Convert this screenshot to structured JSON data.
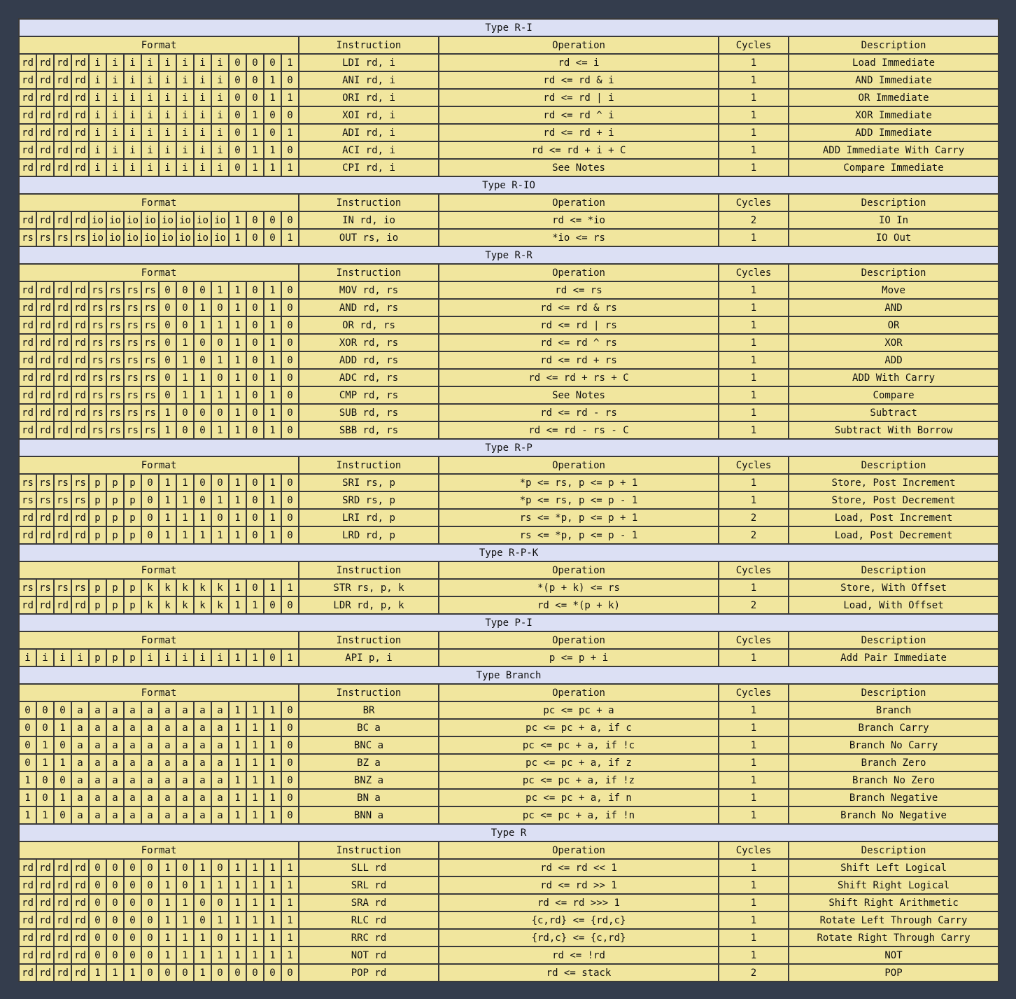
{
  "headers": {
    "format": "Format",
    "instruction": "Instruction",
    "operation": "Operation",
    "cycles": "Cycles",
    "description": "Description"
  },
  "sections": [
    {
      "title": "Type R-I",
      "rows": [
        {
          "bits": [
            "rd",
            "rd",
            "rd",
            "rd",
            "i",
            "i",
            "i",
            "i",
            "i",
            "i",
            "i",
            "i",
            "0",
            "0",
            "0",
            "1"
          ],
          "instruction": "LDI rd, i",
          "operation": "rd <= i",
          "cycles": "1",
          "description": "Load Immediate"
        },
        {
          "bits": [
            "rd",
            "rd",
            "rd",
            "rd",
            "i",
            "i",
            "i",
            "i",
            "i",
            "i",
            "i",
            "i",
            "0",
            "0",
            "1",
            "0"
          ],
          "instruction": "ANI rd, i",
          "operation": "rd <= rd & i",
          "cycles": "1",
          "description": "AND Immediate"
        },
        {
          "bits": [
            "rd",
            "rd",
            "rd",
            "rd",
            "i",
            "i",
            "i",
            "i",
            "i",
            "i",
            "i",
            "i",
            "0",
            "0",
            "1",
            "1"
          ],
          "instruction": "ORI rd, i",
          "operation": "rd <= rd | i",
          "cycles": "1",
          "description": "OR Immediate"
        },
        {
          "bits": [
            "rd",
            "rd",
            "rd",
            "rd",
            "i",
            "i",
            "i",
            "i",
            "i",
            "i",
            "i",
            "i",
            "0",
            "1",
            "0",
            "0"
          ],
          "instruction": "XOI rd, i",
          "operation": "rd <= rd ^ i",
          "cycles": "1",
          "description": "XOR Immediate"
        },
        {
          "bits": [
            "rd",
            "rd",
            "rd",
            "rd",
            "i",
            "i",
            "i",
            "i",
            "i",
            "i",
            "i",
            "i",
            "0",
            "1",
            "0",
            "1"
          ],
          "instruction": "ADI rd, i",
          "operation": "rd <= rd + i",
          "cycles": "1",
          "description": "ADD Immediate"
        },
        {
          "bits": [
            "rd",
            "rd",
            "rd",
            "rd",
            "i",
            "i",
            "i",
            "i",
            "i",
            "i",
            "i",
            "i",
            "0",
            "1",
            "1",
            "0"
          ],
          "instruction": "ACI rd, i",
          "operation": "rd <= rd + i + C",
          "cycles": "1",
          "description": "ADD Immediate With Carry"
        },
        {
          "bits": [
            "rd",
            "rd",
            "rd",
            "rd",
            "i",
            "i",
            "i",
            "i",
            "i",
            "i",
            "i",
            "i",
            "0",
            "1",
            "1",
            "1"
          ],
          "instruction": "CPI rd, i",
          "operation": "See Notes",
          "cycles": "1",
          "description": "Compare Immediate"
        }
      ]
    },
    {
      "title": "Type R-IO",
      "rows": [
        {
          "bits": [
            "rd",
            "rd",
            "rd",
            "rd",
            "io",
            "io",
            "io",
            "io",
            "io",
            "io",
            "io",
            "io",
            "1",
            "0",
            "0",
            "0"
          ],
          "instruction": "IN rd, io",
          "operation": "rd <= *io",
          "cycles": "2",
          "description": "IO In"
        },
        {
          "bits": [
            "rs",
            "rs",
            "rs",
            "rs",
            "io",
            "io",
            "io",
            "io",
            "io",
            "io",
            "io",
            "io",
            "1",
            "0",
            "0",
            "1"
          ],
          "instruction": "OUT rs, io",
          "operation": "*io <= rs",
          "cycles": "1",
          "description": "IO Out"
        }
      ]
    },
    {
      "title": "Type R-R",
      "rows": [
        {
          "bits": [
            "rd",
            "rd",
            "rd",
            "rd",
            "rs",
            "rs",
            "rs",
            "rs",
            "0",
            "0",
            "0",
            "1",
            "1",
            "0",
            "1",
            "0"
          ],
          "instruction": "MOV rd, rs",
          "operation": "rd <= rs",
          "cycles": "1",
          "description": "Move"
        },
        {
          "bits": [
            "rd",
            "rd",
            "rd",
            "rd",
            "rs",
            "rs",
            "rs",
            "rs",
            "0",
            "0",
            "1",
            "0",
            "1",
            "0",
            "1",
            "0"
          ],
          "instruction": "AND rd, rs",
          "operation": "rd <= rd & rs",
          "cycles": "1",
          "description": "AND"
        },
        {
          "bits": [
            "rd",
            "rd",
            "rd",
            "rd",
            "rs",
            "rs",
            "rs",
            "rs",
            "0",
            "0",
            "1",
            "1",
            "1",
            "0",
            "1",
            "0"
          ],
          "instruction": "OR rd, rs",
          "operation": "rd <= rd | rs",
          "cycles": "1",
          "description": "OR"
        },
        {
          "bits": [
            "rd",
            "rd",
            "rd",
            "rd",
            "rs",
            "rs",
            "rs",
            "rs",
            "0",
            "1",
            "0",
            "0",
            "1",
            "0",
            "1",
            "0"
          ],
          "instruction": "XOR rd, rs",
          "operation": "rd <= rd ^ rs",
          "cycles": "1",
          "description": "XOR"
        },
        {
          "bits": [
            "rd",
            "rd",
            "rd",
            "rd",
            "rs",
            "rs",
            "rs",
            "rs",
            "0",
            "1",
            "0",
            "1",
            "1",
            "0",
            "1",
            "0"
          ],
          "instruction": "ADD rd, rs",
          "operation": "rd <= rd + rs",
          "cycles": "1",
          "description": "ADD"
        },
        {
          "bits": [
            "rd",
            "rd",
            "rd",
            "rd",
            "rs",
            "rs",
            "rs",
            "rs",
            "0",
            "1",
            "1",
            "0",
            "1",
            "0",
            "1",
            "0"
          ],
          "instruction": "ADC rd, rs",
          "operation": "rd <= rd + rs + C",
          "cycles": "1",
          "description": "ADD With Carry"
        },
        {
          "bits": [
            "rd",
            "rd",
            "rd",
            "rd",
            "rs",
            "rs",
            "rs",
            "rs",
            "0",
            "1",
            "1",
            "1",
            "1",
            "0",
            "1",
            "0"
          ],
          "instruction": "CMP rd, rs",
          "operation": "See Notes",
          "cycles": "1",
          "description": "Compare"
        },
        {
          "bits": [
            "rd",
            "rd",
            "rd",
            "rd",
            "rs",
            "rs",
            "rs",
            "rs",
            "1",
            "0",
            "0",
            "0",
            "1",
            "0",
            "1",
            "0"
          ],
          "instruction": "SUB rd, rs",
          "operation": "rd <= rd - rs",
          "cycles": "1",
          "description": "Subtract"
        },
        {
          "bits": [
            "rd",
            "rd",
            "rd",
            "rd",
            "rs",
            "rs",
            "rs",
            "rs",
            "1",
            "0",
            "0",
            "1",
            "1",
            "0",
            "1",
            "0"
          ],
          "instruction": "SBB rd, rs",
          "operation": "rd <= rd - rs - C",
          "cycles": "1",
          "description": "Subtract With Borrow"
        }
      ]
    },
    {
      "title": "Type R-P",
      "rows": [
        {
          "bits": [
            "rs",
            "rs",
            "rs",
            "rs",
            "p",
            "p",
            "p",
            "0",
            "1",
            "1",
            "0",
            "0",
            "1",
            "0",
            "1",
            "0"
          ],
          "instruction": "SRI rs, p",
          "operation": "*p <= rs, p <= p + 1",
          "cycles": "1",
          "description": "Store, Post Increment"
        },
        {
          "bits": [
            "rs",
            "rs",
            "rs",
            "rs",
            "p",
            "p",
            "p",
            "0",
            "1",
            "1",
            "0",
            "1",
            "1",
            "0",
            "1",
            "0"
          ],
          "instruction": "SRD rs, p",
          "operation": "*p <= rs, p <= p - 1",
          "cycles": "1",
          "description": "Store, Post Decrement"
        },
        {
          "bits": [
            "rd",
            "rd",
            "rd",
            "rd",
            "p",
            "p",
            "p",
            "0",
            "1",
            "1",
            "1",
            "0",
            "1",
            "0",
            "1",
            "0"
          ],
          "instruction": "LRI rd, p",
          "operation": "rs <= *p, p <= p + 1",
          "cycles": "2",
          "description": "Load, Post Increment"
        },
        {
          "bits": [
            "rd",
            "rd",
            "rd",
            "rd",
            "p",
            "p",
            "p",
            "0",
            "1",
            "1",
            "1",
            "1",
            "1",
            "0",
            "1",
            "0"
          ],
          "instruction": "LRD rd, p",
          "operation": "rs <= *p, p <= p - 1",
          "cycles": "2",
          "description": "Load, Post Decrement"
        }
      ]
    },
    {
      "title": "Type R-P-K",
      "rows": [
        {
          "bits": [
            "rs",
            "rs",
            "rs",
            "rs",
            "p",
            "p",
            "p",
            "k",
            "k",
            "k",
            "k",
            "k",
            "1",
            "0",
            "1",
            "1"
          ],
          "instruction": "STR rs, p, k",
          "operation": "*(p + k) <= rs",
          "cycles": "1",
          "description": "Store, With Offset"
        },
        {
          "bits": [
            "rd",
            "rd",
            "rd",
            "rd",
            "p",
            "p",
            "p",
            "k",
            "k",
            "k",
            "k",
            "k",
            "1",
            "1",
            "0",
            "0"
          ],
          "instruction": "LDR rd, p, k",
          "operation": "rd <= *(p + k)",
          "cycles": "2",
          "description": "Load, With Offset"
        }
      ]
    },
    {
      "title": "Type P-I",
      "rows": [
        {
          "bits": [
            "i",
            "i",
            "i",
            "i",
            "p",
            "p",
            "p",
            "i",
            "i",
            "i",
            "i",
            "i",
            "1",
            "1",
            "0",
            "1"
          ],
          "instruction": "API p, i",
          "operation": "p <= p + i",
          "cycles": "1",
          "description": "Add Pair Immediate"
        }
      ]
    },
    {
      "title": "Type Branch",
      "rows": [
        {
          "bits": [
            "0",
            "0",
            "0",
            "a",
            "a",
            "a",
            "a",
            "a",
            "a",
            "a",
            "a",
            "a",
            "1",
            "1",
            "1",
            "0"
          ],
          "instruction": "BR",
          "operation": "pc <= pc + a",
          "cycles": "1",
          "description": "Branch"
        },
        {
          "bits": [
            "0",
            "0",
            "1",
            "a",
            "a",
            "a",
            "a",
            "a",
            "a",
            "a",
            "a",
            "a",
            "1",
            "1",
            "1",
            "0"
          ],
          "instruction": "BC a",
          "operation": "pc <= pc + a, if c",
          "cycles": "1",
          "description": "Branch Carry"
        },
        {
          "bits": [
            "0",
            "1",
            "0",
            "a",
            "a",
            "a",
            "a",
            "a",
            "a",
            "a",
            "a",
            "a",
            "1",
            "1",
            "1",
            "0"
          ],
          "instruction": "BNC a",
          "operation": "pc <= pc + a, if !c",
          "cycles": "1",
          "description": "Branch No Carry"
        },
        {
          "bits": [
            "0",
            "1",
            "1",
            "a",
            "a",
            "a",
            "a",
            "a",
            "a",
            "a",
            "a",
            "a",
            "1",
            "1",
            "1",
            "0"
          ],
          "instruction": "BZ a",
          "operation": "pc <= pc + a, if z",
          "cycles": "1",
          "description": "Branch Zero"
        },
        {
          "bits": [
            "1",
            "0",
            "0",
            "a",
            "a",
            "a",
            "a",
            "a",
            "a",
            "a",
            "a",
            "a",
            "1",
            "1",
            "1",
            "0"
          ],
          "instruction": "BNZ a",
          "operation": "pc <= pc + a, if !z",
          "cycles": "1",
          "description": "Branch No Zero"
        },
        {
          "bits": [
            "1",
            "0",
            "1",
            "a",
            "a",
            "a",
            "a",
            "a",
            "a",
            "a",
            "a",
            "a",
            "1",
            "1",
            "1",
            "0"
          ],
          "instruction": "BN a",
          "operation": "pc <= pc + a, if n",
          "cycles": "1",
          "description": "Branch Negative"
        },
        {
          "bits": [
            "1",
            "1",
            "0",
            "a",
            "a",
            "a",
            "a",
            "a",
            "a",
            "a",
            "a",
            "a",
            "1",
            "1",
            "1",
            "0"
          ],
          "instruction": "BNN a",
          "operation": "pc <= pc + a, if !n",
          "cycles": "1",
          "description": "Branch No Negative"
        }
      ]
    },
    {
      "title": "Type R",
      "rows": [
        {
          "bits": [
            "rd",
            "rd",
            "rd",
            "rd",
            "0",
            "0",
            "0",
            "0",
            "1",
            "0",
            "1",
            "0",
            "1",
            "1",
            "1",
            "1"
          ],
          "instruction": "SLL rd",
          "operation": "rd <= rd << 1",
          "cycles": "1",
          "description": "Shift Left Logical"
        },
        {
          "bits": [
            "rd",
            "rd",
            "rd",
            "rd",
            "0",
            "0",
            "0",
            "0",
            "1",
            "0",
            "1",
            "1",
            "1",
            "1",
            "1",
            "1"
          ],
          "instruction": "SRL rd",
          "operation": "rd <= rd >> 1",
          "cycles": "1",
          "description": "Shift Right Logical"
        },
        {
          "bits": [
            "rd",
            "rd",
            "rd",
            "rd",
            "0",
            "0",
            "0",
            "0",
            "1",
            "1",
            "0",
            "0",
            "1",
            "1",
            "1",
            "1"
          ],
          "instruction": "SRA rd",
          "operation": "rd <= rd >>> 1",
          "cycles": "1",
          "description": "Shift Right Arithmetic"
        },
        {
          "bits": [
            "rd",
            "rd",
            "rd",
            "rd",
            "0",
            "0",
            "0",
            "0",
            "1",
            "1",
            "0",
            "1",
            "1",
            "1",
            "1",
            "1"
          ],
          "instruction": "RLC rd",
          "operation": "{c,rd} <= {rd,c}",
          "cycles": "1",
          "description": "Rotate Left Through Carry"
        },
        {
          "bits": [
            "rd",
            "rd",
            "rd",
            "rd",
            "0",
            "0",
            "0",
            "0",
            "1",
            "1",
            "1",
            "0",
            "1",
            "1",
            "1",
            "1"
          ],
          "instruction": "RRC rd",
          "operation": "{rd,c} <= {c,rd}",
          "cycles": "1",
          "description": "Rotate Right Through Carry"
        },
        {
          "bits": [
            "rd",
            "rd",
            "rd",
            "rd",
            "0",
            "0",
            "0",
            "0",
            "1",
            "1",
            "1",
            "1",
            "1",
            "1",
            "1",
            "1"
          ],
          "instruction": "NOT rd",
          "operation": "rd <= !rd",
          "cycles": "1",
          "description": "NOT"
        },
        {
          "bits": [
            "rd",
            "rd",
            "rd",
            "rd",
            "1",
            "1",
            "1",
            "0",
            "0",
            "0",
            "1",
            "0",
            "0",
            "0",
            "0",
            "0"
          ],
          "instruction": "POP rd",
          "operation": "rd <= stack",
          "cycles": "2",
          "description": "POP"
        }
      ]
    }
  ]
}
